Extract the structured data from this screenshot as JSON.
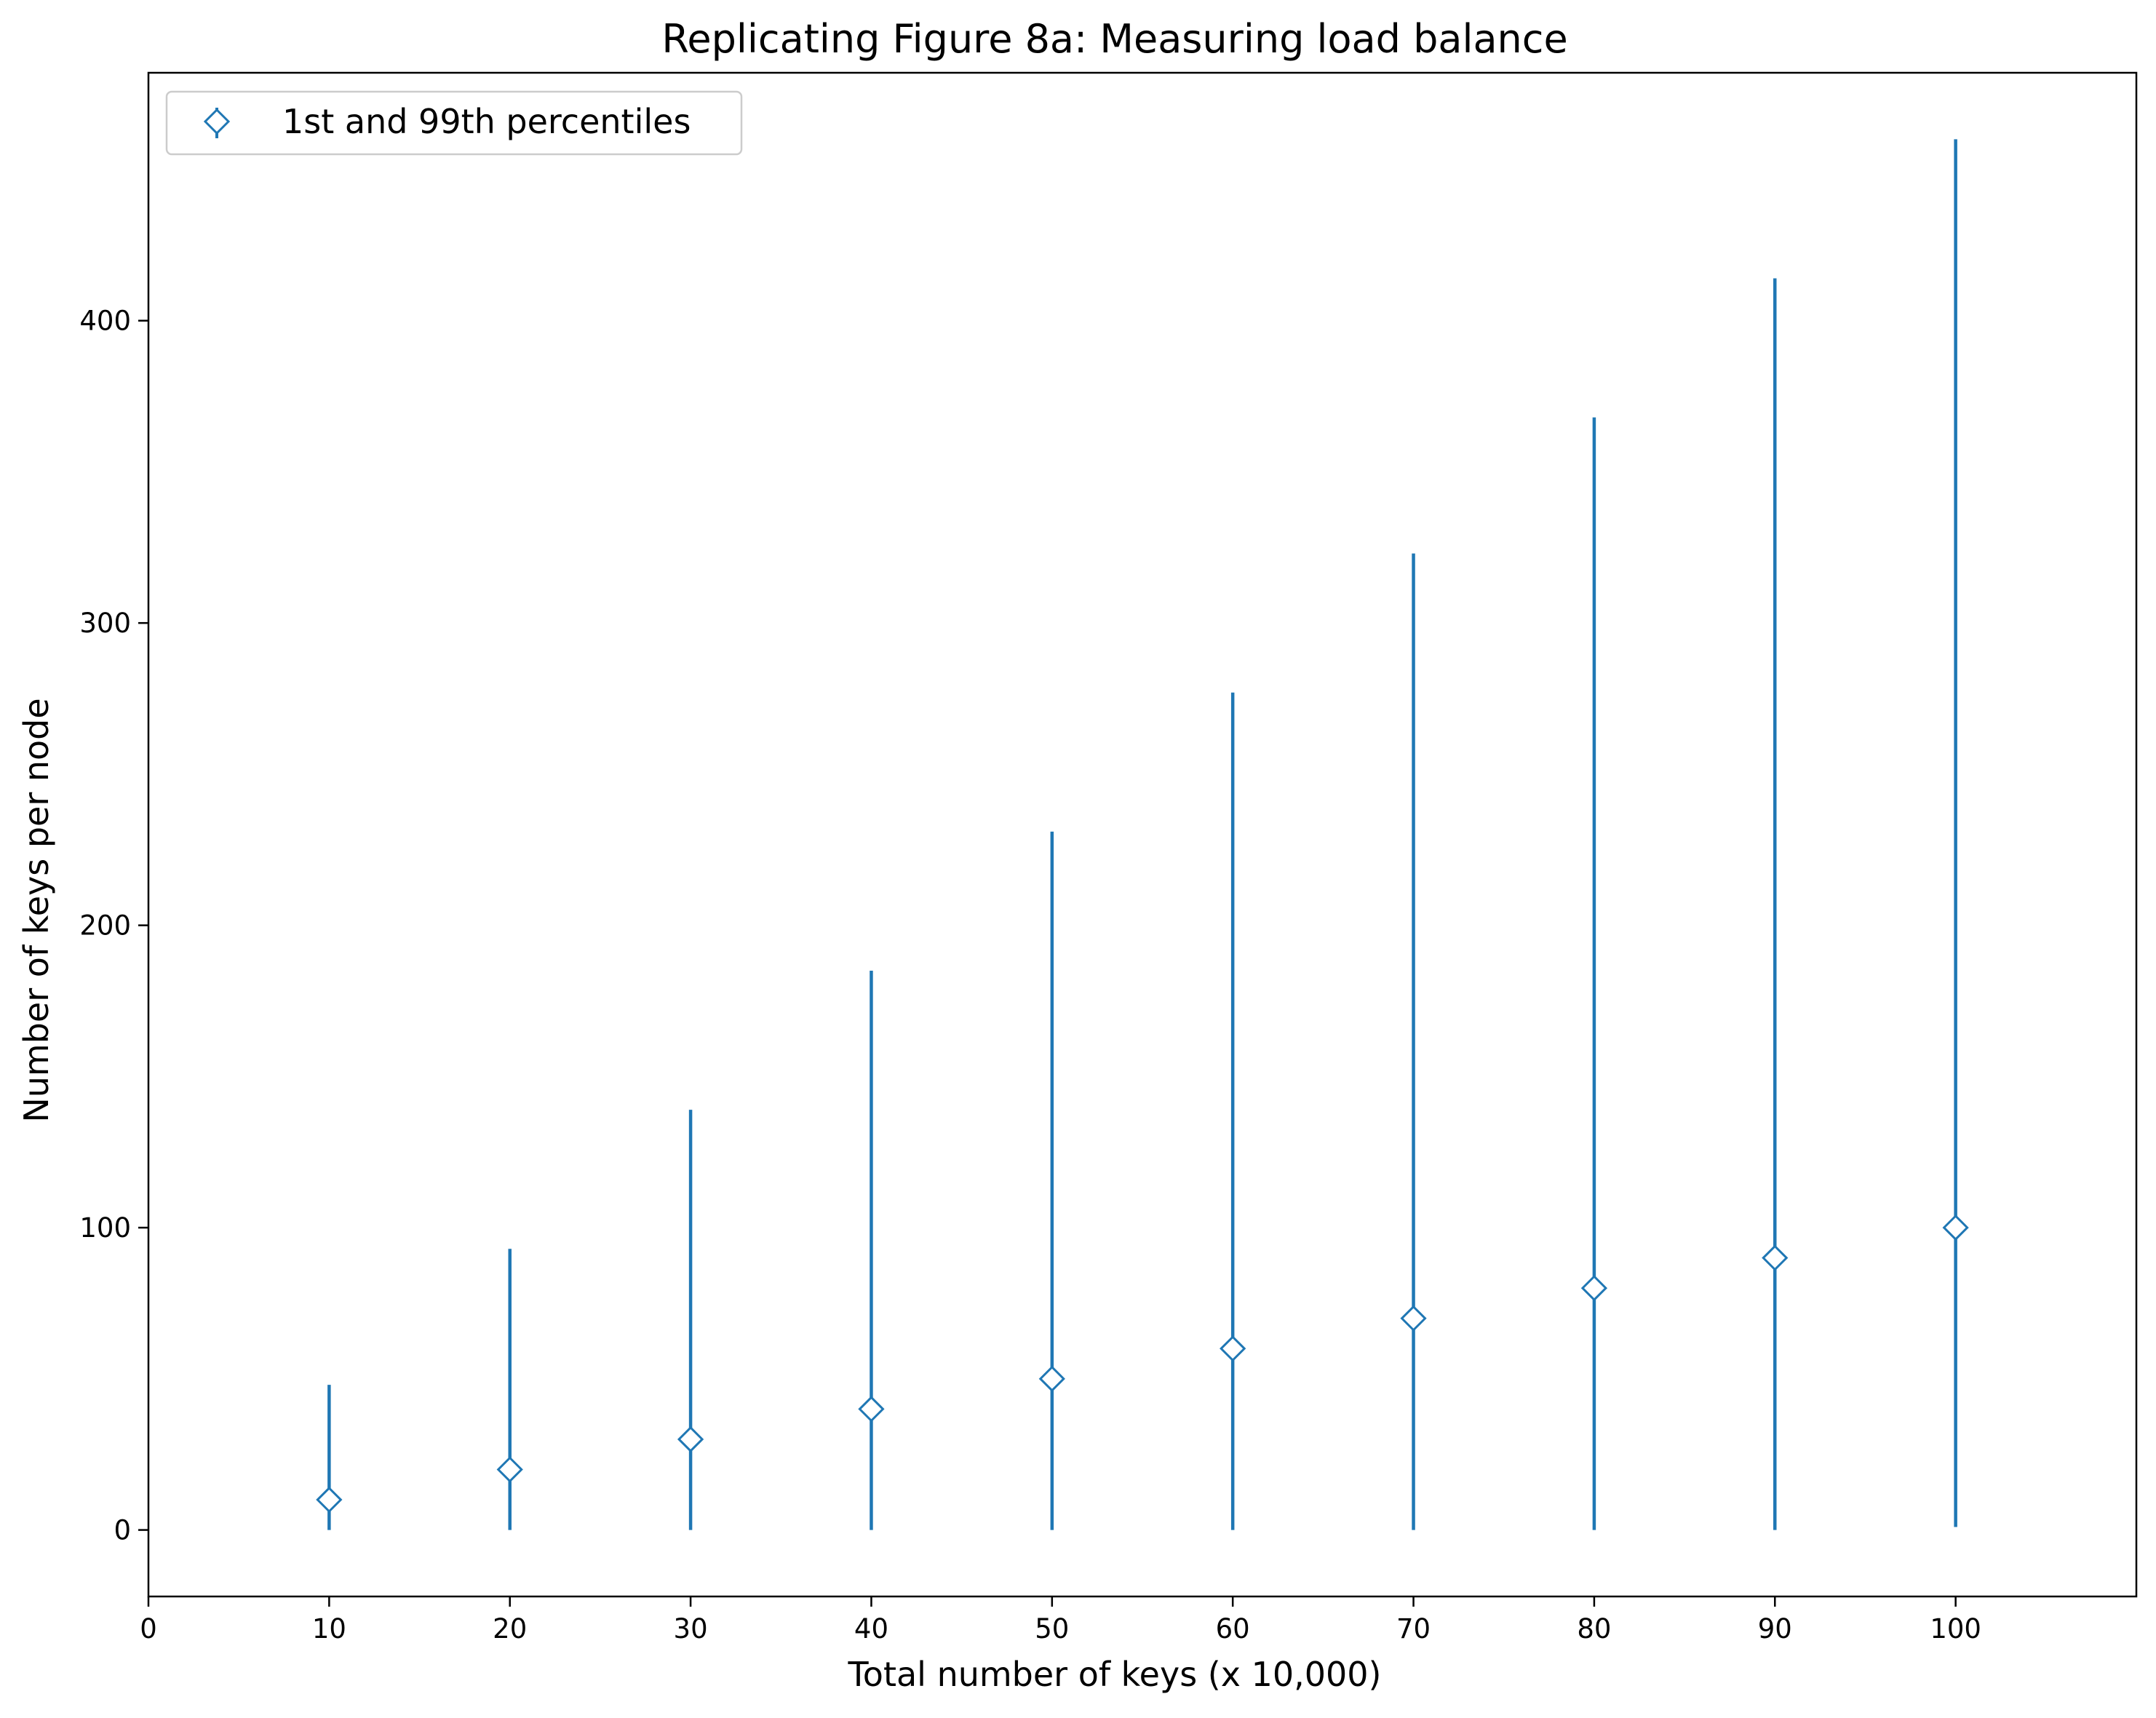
{
  "chart_data": {
    "type": "scatter",
    "title": "Replicating Figure 8a: Measuring load balance",
    "xlabel": "Total number of keys (x 10,000)",
    "ylabel": "Number of keys per node",
    "xlim": [
      0,
      110
    ],
    "ylim": [
      -22,
      482
    ],
    "x_ticks": [
      0,
      10,
      20,
      30,
      40,
      50,
      60,
      70,
      80,
      90,
      100
    ],
    "y_ticks": [
      0,
      100,
      200,
      300,
      400
    ],
    "grid": false,
    "legend_position": "top-left",
    "series": [
      {
        "name": "1st and 99th percentiles",
        "marker": "diamond",
        "color": "#1f77b4",
        "x": [
          10,
          20,
          30,
          40,
          50,
          60,
          70,
          80,
          90,
          100
        ],
        "y": [
          10,
          20,
          30,
          40,
          50,
          60,
          70,
          80,
          90,
          100
        ],
        "low": [
          0,
          0,
          0,
          0,
          0,
          0,
          0,
          0,
          0,
          1
        ],
        "high": [
          48,
          93,
          139,
          185,
          231,
          277,
          323,
          368,
          414,
          460
        ]
      }
    ]
  }
}
